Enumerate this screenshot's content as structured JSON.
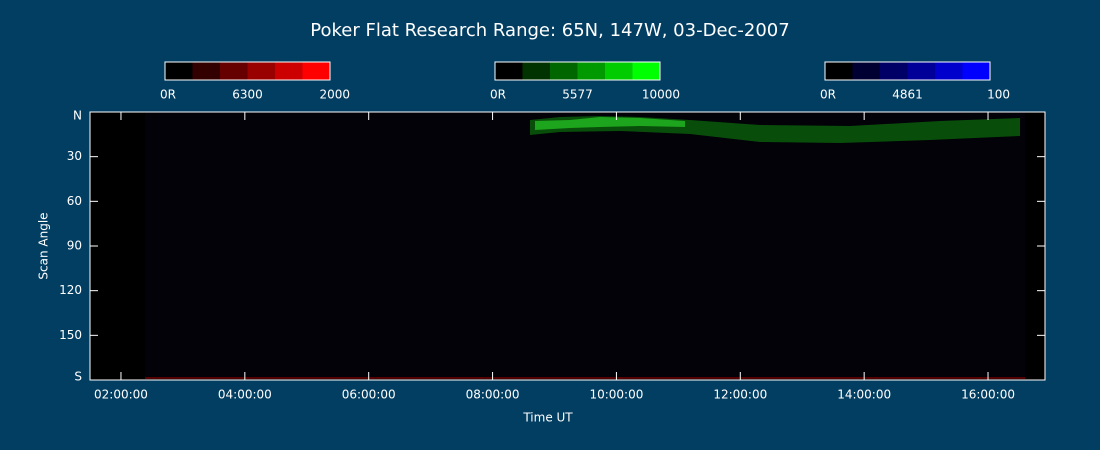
{
  "chart_data": {
    "type": "keogram",
    "title": "Poker Flat Research Range: 65N, 147W, 03-Dec-2007",
    "xlabel": "Time UT",
    "ylabel": "Scan Angle",
    "xlim": [
      1.5,
      16.92
    ],
    "xticks": [
      {
        "value": 2,
        "label": "02:00:00"
      },
      {
        "value": 4,
        "label": "04:00:00"
      },
      {
        "value": 6,
        "label": "06:00:00"
      },
      {
        "value": 8,
        "label": "08:00:00"
      },
      {
        "value": 10,
        "label": "10:00:00"
      },
      {
        "value": 12,
        "label": "12:00:00"
      },
      {
        "value": 14,
        "label": "14:00:00"
      },
      {
        "value": 16,
        "label": "16:00:00"
      }
    ],
    "ylim": [
      0,
      180
    ],
    "yticks": [
      {
        "value": 0,
        "label": "N"
      },
      30,
      60,
      90,
      120,
      150,
      {
        "value": 180,
        "label": "S"
      }
    ],
    "colorbars": [
      {
        "name": "6300",
        "min_label": "0R",
        "max": 2000,
        "colors": [
          "#000000",
          "#330000",
          "#660000",
          "#990000",
          "#cc0000",
          "#ff0000"
        ]
      },
      {
        "name": "5577",
        "min_label": "0R",
        "max": 10000,
        "colors": [
          "#000000",
          "#003300",
          "#006600",
          "#009900",
          "#00cc00",
          "#00ff00"
        ]
      },
      {
        "name": "4861",
        "min_label": "0R",
        "max": 100,
        "colors": [
          "#000000",
          "#000033",
          "#000066",
          "#000099",
          "#0000cc",
          "#0000ff"
        ]
      }
    ]
  }
}
